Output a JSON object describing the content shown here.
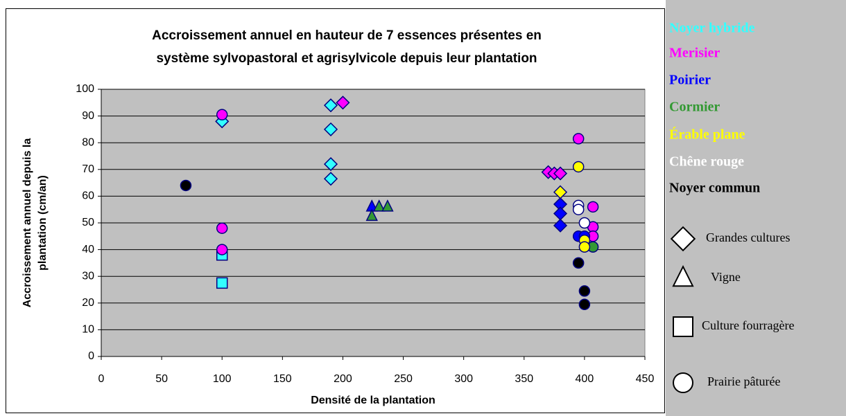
{
  "chart_data": {
    "type": "scatter",
    "title": [
      "Accroissement annuel en hauteur de 7 essences présentes en",
      "système sylvopastoral et agrisylvicole depuis leur plantation"
    ],
    "xlabel": "Densité de la plantation",
    "ylabel": [
      "Accroissement annuel depuis la",
      "plantation (cm/an)"
    ],
    "xlim": [
      0,
      450
    ],
    "xticks": [
      0,
      50,
      100,
      150,
      200,
      250,
      300,
      350,
      400,
      450
    ],
    "ylim": [
      0,
      100
    ],
    "yticks": [
      0,
      10,
      20,
      30,
      40,
      50,
      60,
      70,
      80,
      90,
      100
    ],
    "grid": true,
    "series": [
      {
        "name": "Noyer hybride",
        "color": "#33ffff",
        "x": [
          100,
          190,
          190,
          190,
          190,
          100,
          100
        ],
        "values": [
          88,
          94,
          85,
          72,
          66.5,
          38,
          27.5
        ],
        "markers": [
          "diamond",
          "diamond",
          "diamond",
          "diamond",
          "diamond",
          "square",
          "square"
        ]
      },
      {
        "name": "Merisier",
        "color": "#ff00ff",
        "x": [
          200,
          370,
          375,
          380,
          100,
          100,
          100,
          395,
          407,
          407,
          407
        ],
        "values": [
          95,
          69,
          68.5,
          68.5,
          90.5,
          48,
          40,
          81.5,
          56,
          48.5,
          45
        ],
        "markers": [
          "diamond",
          "diamond",
          "diamond",
          "diamond",
          "circle",
          "circle",
          "circle",
          "circle",
          "circle",
          "circle",
          "circle"
        ]
      },
      {
        "name": "Poirier",
        "color": "#0000ff",
        "x": [
          380,
          380,
          380,
          224,
          395,
          400
        ],
        "values": [
          57,
          53.5,
          49,
          56,
          45,
          45
        ],
        "markers": [
          "diamond",
          "diamond",
          "diamond",
          "triangle",
          "circle",
          "circle"
        ]
      },
      {
        "name": "Cormier",
        "color": "#339933",
        "x": [
          224,
          230,
          237,
          407
        ],
        "values": [
          52.5,
          56,
          56,
          41
        ],
        "markers": [
          "triangle",
          "triangle",
          "triangle",
          "circle"
        ]
      },
      {
        "name": "Érable plane",
        "color": "#ffff00",
        "x": [
          380,
          395,
          400,
          400
        ],
        "values": [
          61.5,
          71,
          43.5,
          41
        ],
        "markers": [
          "diamond",
          "circle",
          "circle",
          "circle"
        ]
      },
      {
        "name": "Chêne rouge",
        "color": "#ffffff",
        "x": [
          395,
          395,
          400
        ],
        "values": [
          56.5,
          55,
          50
        ],
        "markers": [
          "circle",
          "circle",
          "circle"
        ]
      },
      {
        "name": "Noyer commun",
        "color": "#000000",
        "x": [
          70,
          395,
          400,
          400
        ],
        "values": [
          64,
          35,
          24.5,
          19.5
        ],
        "markers": [
          "circle",
          "circle",
          "circle",
          "circle"
        ]
      }
    ],
    "shape_legend": [
      {
        "marker": "diamond",
        "label": "Grandes cultures"
      },
      {
        "marker": "triangle",
        "label": "Vigne"
      },
      {
        "marker": "square",
        "label": "Culture fourragère"
      },
      {
        "marker": "circle",
        "label": "Prairie pâturée"
      }
    ]
  }
}
